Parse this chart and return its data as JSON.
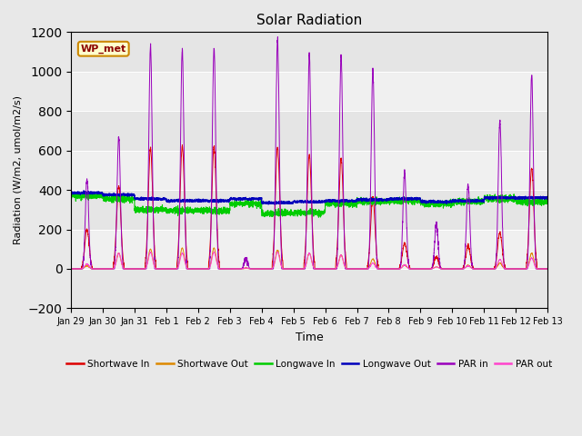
{
  "title": "Solar Radiation",
  "ylabel": "Radiation (W/m2, umol/m2/s)",
  "xlabel": "Time",
  "ylim": [
    -200,
    1200
  ],
  "yticks": [
    -200,
    0,
    200,
    400,
    600,
    800,
    1000,
    1200
  ],
  "background_color": "#e8e8e8",
  "plot_bg_color": "#f0f0f0",
  "label_box": "WP_met",
  "legend_entries": [
    "Shortwave In",
    "Shortwave Out",
    "Longwave In",
    "Longwave Out",
    "PAR in",
    "PAR out"
  ],
  "legend_colors": [
    "#dd0000",
    "#dd8800",
    "#00cc00",
    "#0000bb",
    "#9900bb",
    "#ff44cc"
  ],
  "line_colors": {
    "sw_in": "#dd0000",
    "sw_out": "#dd8800",
    "lw_in": "#00cc00",
    "lw_out": "#0000bb",
    "par_in": "#9900bb",
    "par_out": "#ff44cc"
  },
  "tick_labels": [
    "Jan 29",
    "Jan 30",
    "Jan 31",
    "Feb 1",
    "Feb 2",
    "Feb 3",
    "Feb 4",
    "Feb 5",
    "Feb 6",
    "Feb 7",
    "Feb 8",
    "Feb 9",
    "Feb 10",
    "Feb 11",
    "Feb 12",
    "Feb 13"
  ],
  "num_days": 15
}
